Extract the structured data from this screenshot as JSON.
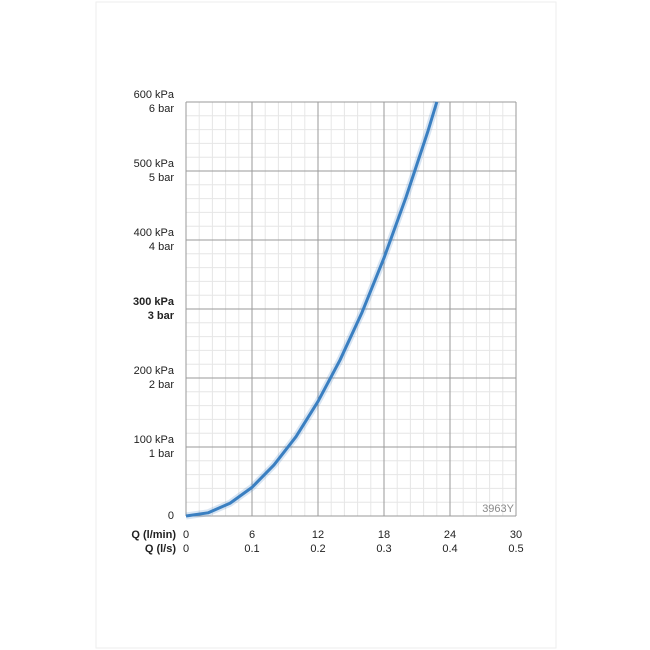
{
  "chart_data": {
    "type": "line",
    "xlabel": "Q (l/min)",
    "x2label": "Q (l/s)",
    "annotation": "3963Y",
    "xlim": [
      0,
      30
    ],
    "xticks": [
      0,
      6,
      12,
      18,
      24,
      30
    ],
    "x2lim": [
      0,
      0.5
    ],
    "x2ticks": [
      0,
      0.1,
      0.2,
      0.3,
      0.4,
      0.5
    ],
    "ylim": [
      0,
      600
    ],
    "yticks": [
      0,
      {
        "value": 100,
        "label": "100 kPa"
      },
      {
        "value": 200,
        "label": "200 kPa"
      },
      {
        "value": 300,
        "label": "300 kPa"
      },
      {
        "value": 400,
        "label": "400 kPa"
      },
      {
        "value": 500,
        "label": "500 kPa"
      },
      {
        "value": 600,
        "label": "600 kPa"
      }
    ],
    "yticks_bar": [
      {
        "value": 100,
        "label": "1 bar"
      },
      {
        "value": 200,
        "label": "2 bar"
      },
      {
        "value": 300,
        "label": "3 bar"
      },
      {
        "value": 400,
        "label": "4 bar"
      },
      {
        "value": 500,
        "label": "5 bar"
      },
      {
        "value": 600,
        "label": "6 bar"
      }
    ],
    "highlight_ytick": 300,
    "grid": true,
    "minor_xstep": 1.2,
    "minor_ystep": 20,
    "series": [
      {
        "color": "#3a7fc1",
        "x": [
          0,
          2,
          4,
          6,
          8,
          10,
          12,
          14,
          16,
          18,
          20,
          22,
          22.8
        ],
        "values": [
          0,
          4.6,
          18.5,
          41.5,
          74,
          115,
          166,
          226,
          295,
          374,
          462,
          558,
          600
        ]
      }
    ]
  }
}
